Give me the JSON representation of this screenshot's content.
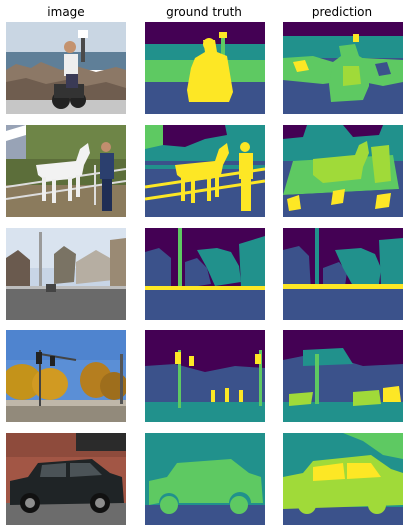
{
  "headers": [
    "image",
    "ground truth",
    "prediction"
  ],
  "rows": [
    {
      "image_scene": "person-sitting-on-motorcycle-on-rocky-shore"
    },
    {
      "image_scene": "man-standing-with-white-horse-by-fence"
    },
    {
      "image_scene": "street-with-utility-pole-and-houses"
    },
    {
      "image_scene": "intersection-with-traffic-lights-and-autumn-trees"
    },
    {
      "image_scene": "dark-suv-parked-by-brick-wall"
    }
  ],
  "palette": {
    "class_0": "#440154",
    "class_1": "#3b528b",
    "class_2": "#21918c",
    "class_3": "#5ec962",
    "class_4": "#fde725"
  }
}
